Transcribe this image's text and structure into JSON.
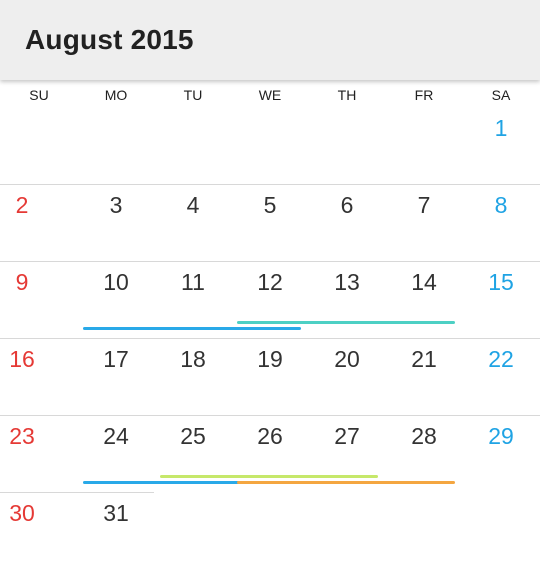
{
  "header": {
    "title": "August 2015"
  },
  "weekdays": [
    "SU",
    "MO",
    "TU",
    "WE",
    "TH",
    "FR",
    "SA"
  ],
  "weeks": [
    [
      "",
      "",
      "",
      "",
      "",
      "",
      "1"
    ],
    [
      "2",
      "3",
      "4",
      "5",
      "6",
      "7",
      "8"
    ],
    [
      "9",
      "10",
      "11",
      "12",
      "13",
      "14",
      "15"
    ],
    [
      "16",
      "17",
      "18",
      "19",
      "20",
      "21",
      "22"
    ],
    [
      "23",
      "24",
      "25",
      "26",
      "27",
      "28",
      "29"
    ],
    [
      "30",
      "31",
      "",
      "",
      "",
      "",
      ""
    ]
  ],
  "colors": {
    "sunday": "#e53935",
    "saturday": "#1fa3e4",
    "weekday": "#333333",
    "event_blue": "#29a9e8",
    "event_teal": "#4dd0c4",
    "event_lime": "#c6e86a",
    "event_orange": "#f4a640"
  },
  "events": [
    {
      "week": 2,
      "start_day": "10",
      "end_day": "12",
      "color": "event_blue"
    },
    {
      "week": 2,
      "start_day": "12",
      "end_day": "14",
      "color": "event_teal"
    },
    {
      "week": 4,
      "start_day": "25",
      "end_day": "27",
      "color": "event_lime"
    },
    {
      "week": 4,
      "start_day": "24",
      "end_day": "26",
      "color": "event_blue"
    },
    {
      "week": 4,
      "start_day": "26",
      "end_day": "28",
      "color": "event_orange"
    }
  ]
}
